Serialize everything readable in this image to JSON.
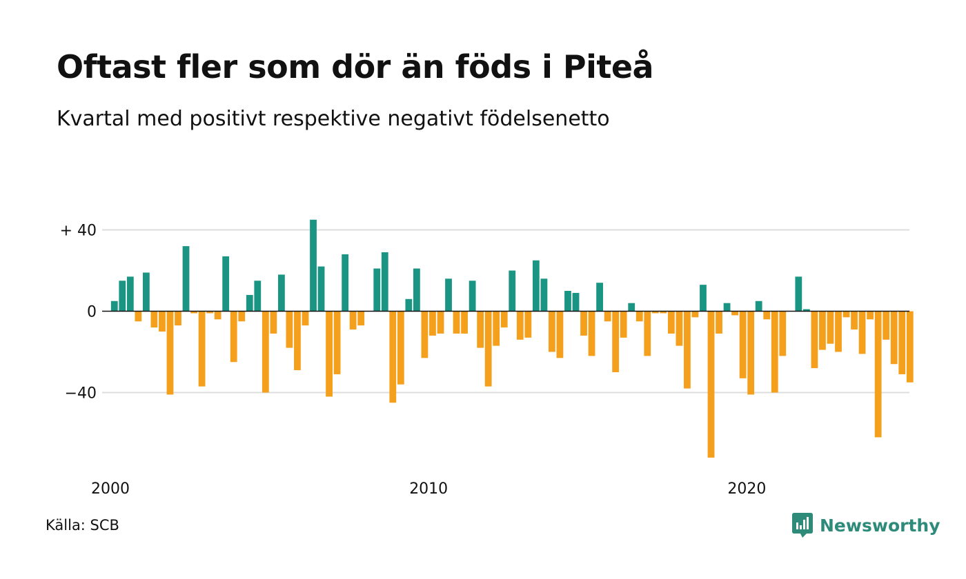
{
  "title": "Oftast fler som dör än föds i Piteå",
  "subtitle": "Kvartal med positivt respektive negativt födelsenetto",
  "source": "Källa: SCB",
  "brand": "Newsworthy",
  "colors": {
    "positive": "#1b9583",
    "negative": "#f4a01c",
    "grid": "#dddddd",
    "axis": "#111111",
    "brand": "#2e8b7a"
  },
  "chart_data": {
    "type": "bar",
    "title": "Oftast fler som dör än föds i Piteå",
    "subtitle": "Kvartal med positivt respektive negativt födelsenetto",
    "xlabel": "",
    "ylabel": "",
    "ylim": [
      -75,
      45
    ],
    "yticks": [
      {
        "value": 40,
        "label": "+ 40"
      },
      {
        "value": 0,
        "label": "0"
      },
      {
        "value": -40,
        "label": "−40"
      }
    ],
    "xticks": [
      {
        "value": 2000,
        "label": "2000"
      },
      {
        "value": 2010,
        "label": "2010"
      },
      {
        "value": 2020,
        "label": "2020"
      }
    ],
    "start_year": 2000,
    "periods_per_year": 4,
    "grid": true,
    "legend": "none",
    "values": [
      5,
      15,
      17,
      -5,
      19,
      -8,
      -10,
      -41,
      -7,
      32,
      -1,
      -37,
      -1,
      -4,
      27,
      -25,
      -5,
      8,
      15,
      -40,
      -11,
      18,
      -18,
      -29,
      -7,
      45,
      22,
      -42,
      -31,
      28,
      -9,
      -7,
      0,
      21,
      29,
      -45,
      -36,
      6,
      21,
      -23,
      -12,
      -11,
      16,
      -11,
      -11,
      15,
      -18,
      -37,
      -17,
      -8,
      20,
      -14,
      -13,
      25,
      16,
      -20,
      -23,
      10,
      9,
      -12,
      -22,
      14,
      -5,
      -30,
      -13,
      4,
      -5,
      -22,
      -1,
      -1,
      -11,
      -17,
      -38,
      -3,
      13,
      -72,
      -11,
      4,
      -2,
      -33,
      -41,
      5,
      -4,
      -40,
      -22,
      0,
      17,
      1,
      -28,
      -19,
      -16,
      -20,
      -3,
      -9,
      -21,
      -4,
      -62,
      -14,
      -26,
      -31,
      -35
    ]
  }
}
